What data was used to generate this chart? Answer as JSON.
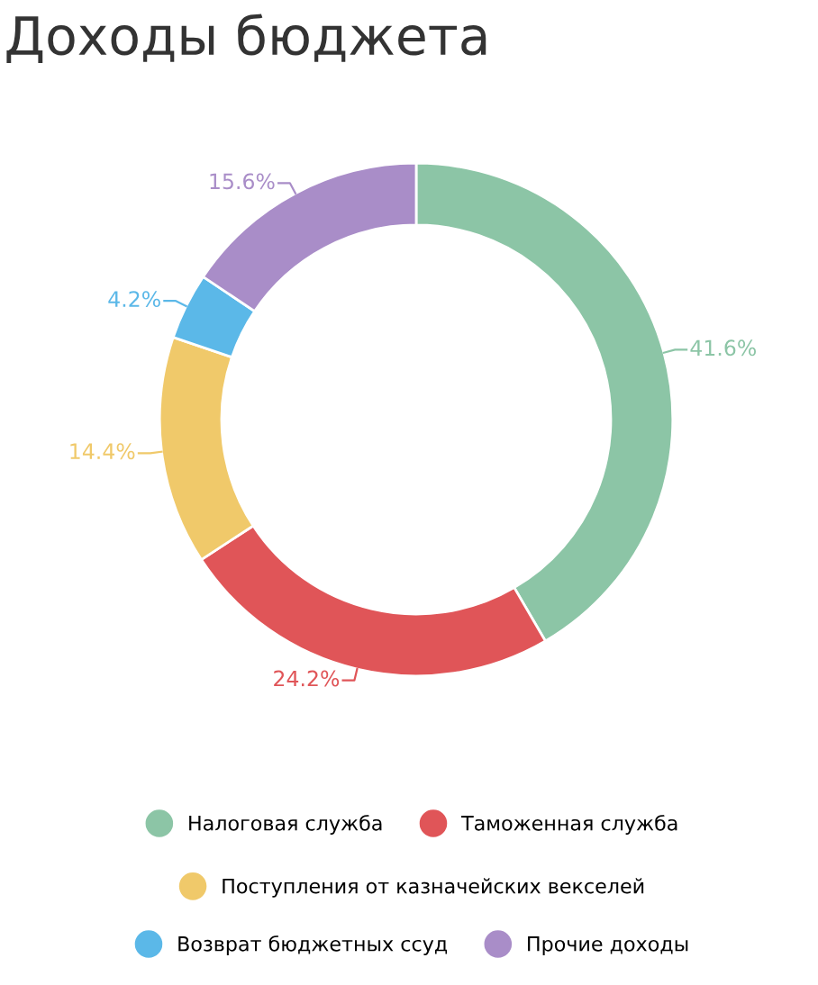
{
  "chart_data": {
    "type": "donut",
    "title": "Доходы бюджета",
    "categories": [
      "Налоговая служба",
      "Таможенная служба",
      "Поступления от казначейских векселей",
      "Возврат бюджетных ссуд",
      "Прочие доходы"
    ],
    "values": [
      41.6,
      24.2,
      14.4,
      4.2,
      15.6
    ],
    "colors": [
      "#8cc5a6",
      "#e05558",
      "#f0c96a",
      "#5bb8e8",
      "#a98dc8"
    ],
    "value_labels": [
      "41.6%",
      "24.2%",
      "14.4%",
      "4.2%",
      "15.6%"
    ],
    "legend": "bottom"
  }
}
